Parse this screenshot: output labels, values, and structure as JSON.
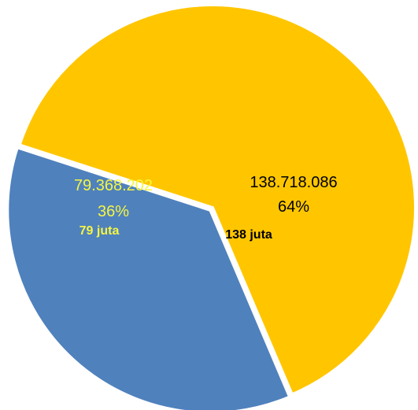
{
  "chart_data": {
    "type": "pie",
    "slices": [
      {
        "value": 138718086,
        "value_label": "138.718.086",
        "percent_label": "64%",
        "note": "138 juta",
        "color": "#FFC600",
        "label_color": "#000000",
        "note_color": "#000000"
      },
      {
        "value": 79368202,
        "value_label": "79.368.202",
        "percent_label": "36%",
        "note": "79 juta",
        "color": "#4F81BD",
        "label_color": "#F5F542",
        "note_color": "#F5F542"
      }
    ],
    "title": "",
    "legend": "none"
  }
}
